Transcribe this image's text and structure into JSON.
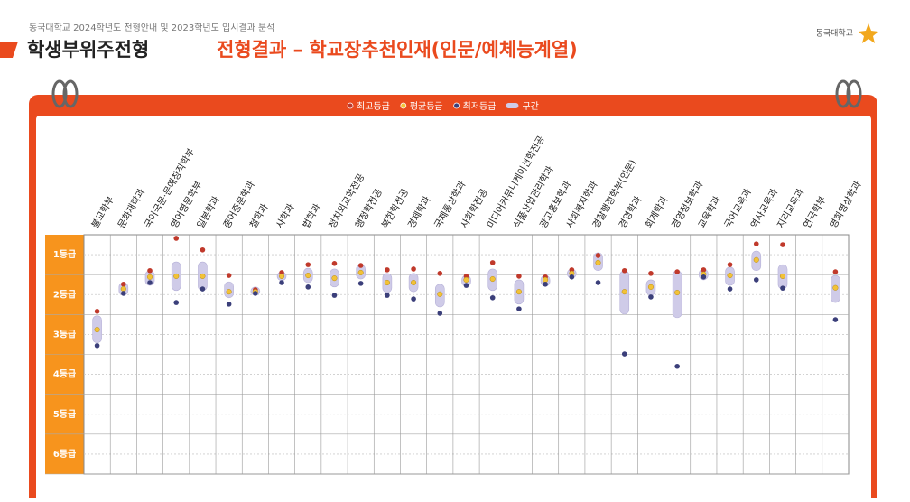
{
  "header": {
    "subtitle": "동국대학교 2024학년도 전형안내 및 2023학년도 입시결과 분석",
    "title": "학생부위주전형",
    "title_highlight": "전형결과 – 학교장추천인재(인문/예체능계열)",
    "logo": "동국대학교"
  },
  "chart_data": {
    "type": "range-dot",
    "categories": [
      "불교학부",
      "문화재학과",
      "국어국문·문예창작학부",
      "영어영문학부",
      "일본학과",
      "중어중문학과",
      "철학과",
      "사학과",
      "법학과",
      "정치외교학전공",
      "행정학전공",
      "북한학전공",
      "경제학과",
      "국제통상학과",
      "사회학전공",
      "미디어커뮤니케이션학전공",
      "식품산업관리학과",
      "광고홍보학과",
      "사회복지학과",
      "경찰행정학부(인문)",
      "경영학과",
      "회계학과",
      "경영정보학과",
      "교육학과",
      "국어교육과",
      "역사교육과",
      "지리교육과",
      "연극학부",
      "영화영상학과"
    ],
    "series": [
      {
        "name": "최고등급",
        "color": "#c0392b",
        "values": [
          2.42,
          1.74,
          1.4,
          0.59,
          0.88,
          1.52,
          1.88,
          1.45,
          1.25,
          1.22,
          1.27,
          1.38,
          1.36,
          1.47,
          1.54,
          1.2,
          1.54,
          1.56,
          1.38,
          1.02,
          1.4,
          1.47,
          1.43,
          1.38,
          1.25,
          0.73,
          0.75,
          null,
          1.43
        ]
      },
      {
        "name": "평균등급",
        "color": "#f2c237",
        "values": [
          2.88,
          1.86,
          1.56,
          1.54,
          1.54,
          1.93,
          1.93,
          1.54,
          1.52,
          1.59,
          1.45,
          1.7,
          1.7,
          1.99,
          1.63,
          1.61,
          1.93,
          1.63,
          1.47,
          1.2,
          1.93,
          1.81,
          1.95,
          1.49,
          1.52,
          1.13,
          1.54,
          null,
          1.83
        ]
      },
      {
        "name": "최저등급",
        "color": "#3b3f7a",
        "values": [
          3.28,
          1.97,
          1.7,
          2.2,
          1.86,
          2.24,
          1.97,
          1.7,
          1.81,
          2.02,
          1.72,
          2.02,
          2.11,
          2.47,
          1.77,
          2.08,
          2.36,
          1.74,
          1.56,
          1.7,
          3.49,
          2.06,
          3.8,
          1.56,
          1.86,
          1.63,
          1.84,
          null,
          2.63
        ]
      }
    ],
    "range": {
      "name": "구간",
      "color": "#cfcbe8",
      "low": [
        2.53,
        1.7,
        1.4,
        1.18,
        1.18,
        1.68,
        1.81,
        1.43,
        1.34,
        1.36,
        1.25,
        1.47,
        1.47,
        1.74,
        1.52,
        1.36,
        1.63,
        1.52,
        1.36,
        0.95,
        1.4,
        1.63,
        1.4,
        1.36,
        1.31,
        0.91,
        1.25,
        null,
        1.52
      ],
      "high": [
        3.21,
        2.02,
        1.77,
        1.9,
        1.9,
        2.08,
        2.02,
        1.65,
        1.7,
        1.81,
        1.61,
        1.95,
        1.93,
        2.31,
        1.79,
        1.9,
        2.24,
        1.79,
        1.59,
        1.4,
        2.49,
        2.02,
        2.58,
        1.63,
        1.77,
        1.4,
        1.86,
        null,
        2.2
      ]
    },
    "ylim": [
      0.5,
      6.5
    ],
    "y_inverted": true,
    "yticks": [
      {
        "value": 1,
        "label": "1등급"
      },
      {
        "value": 2,
        "label": "2등급"
      },
      {
        "value": 3,
        "label": "3등급"
      },
      {
        "value": 4,
        "label": "4등급"
      },
      {
        "value": 5,
        "label": "5등급"
      },
      {
        "value": 6,
        "label": "6등급"
      }
    ],
    "grid": true
  }
}
